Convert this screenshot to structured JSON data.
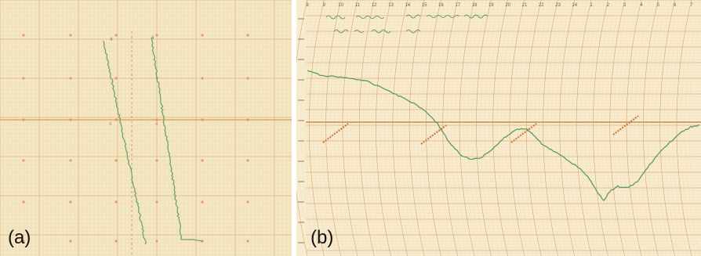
{
  "figure": {
    "panel_a": {
      "label": "(a)",
      "paper_color": "#f3e7c4",
      "grid_color": "#e3b77e",
      "trace_color": "#6ea56a"
    },
    "panel_b": {
      "label": "(b)",
      "paper_color": "#f7ecd0",
      "grid_color": "#d8a36a",
      "trace_color": "#5e9a5e",
      "annotation_color": "#3f8f4f",
      "hour_ticks": [
        "8",
        "9",
        "10",
        "11",
        "12",
        "13",
        "14",
        "15",
        "16",
        "17",
        "18",
        "19",
        "20",
        "21",
        "22",
        "23",
        "24",
        "1",
        "2",
        "3",
        "4",
        "5",
        "6",
        "7"
      ]
    }
  }
}
